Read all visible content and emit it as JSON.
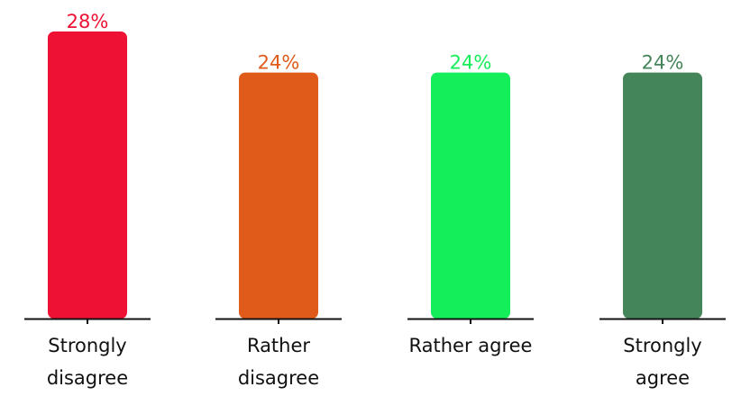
{
  "chart_data": {
    "type": "bar",
    "categories": [
      [
        "Strongly",
        "disagree"
      ],
      [
        "Rather",
        "disagree"
      ],
      [
        "Rather agree"
      ],
      [
        "Strongly",
        "agree"
      ]
    ],
    "values": [
      28,
      24,
      24,
      24
    ],
    "value_labels": [
      "28%",
      "24%",
      "24%",
      "24%"
    ],
    "colors": [
      "#ee1133",
      "#e05a1a",
      "#13ee5a",
      "#44855a"
    ],
    "ylim": [
      0,
      28
    ],
    "grid": false,
    "legend": "none"
  }
}
